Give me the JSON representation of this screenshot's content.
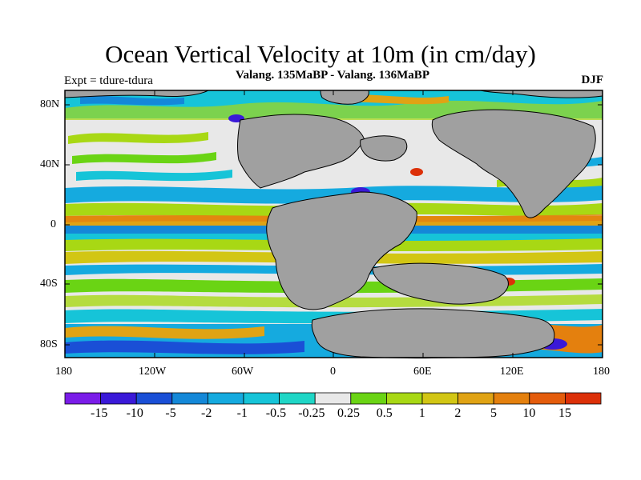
{
  "title": "Ocean Vertical Velocity at 10m (in cm/day)",
  "subtitle": "Valang.  135MaBP - Valang.  136MaBP",
  "experiment": "Expt = tdure-tdura",
  "season": "DJF",
  "axes": {
    "lat_labels": [
      "80N",
      "40N",
      "0",
      "40S",
      "80S"
    ],
    "lon_labels": [
      "180",
      "120W",
      "60W",
      "0",
      "60E",
      "120E",
      "180"
    ]
  },
  "colorbar": {
    "labels": [
      "-15",
      "-10",
      "-5",
      "-2",
      "-1",
      "-0.5",
      "-0.25",
      "0.25",
      "0.5",
      "1",
      "2",
      "5",
      "10",
      "15"
    ],
    "colors": [
      "#7a1ce8",
      "#3a19d8",
      "#1a4fd6",
      "#1488d8",
      "#15aadf",
      "#16c4d8",
      "#1fd6c6",
      "#e8e8e8",
      "#6ad414",
      "#a8d814",
      "#d2c614",
      "#e0a314",
      "#e4800e",
      "#e45c0c",
      "#dc3008"
    ]
  },
  "land_color": "#a0a0a0"
}
